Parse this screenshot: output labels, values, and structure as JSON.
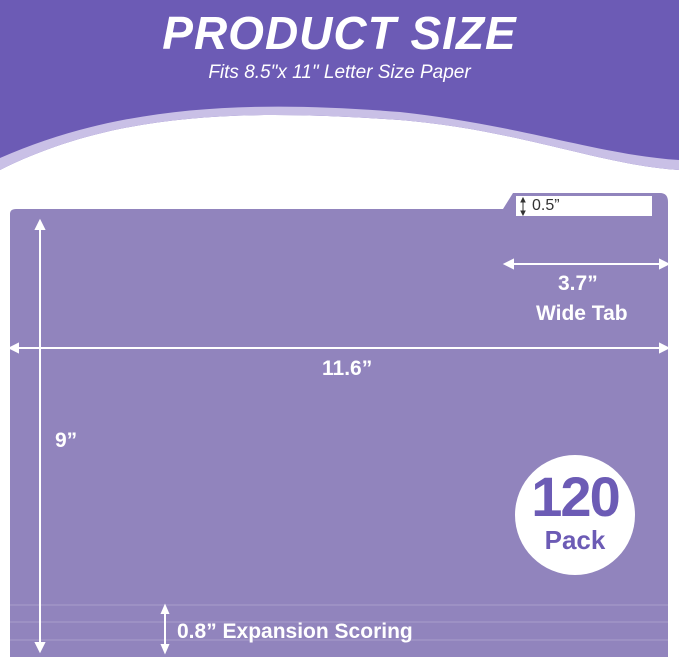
{
  "header": {
    "title": "PRODUCT SIZE",
    "subtitle": "Fits 8.5\"x 11\" Letter Size Paper"
  },
  "dimensions": {
    "tab_height": "0.5”",
    "tab_width": "3.7”",
    "tab_width_caption": "Wide Tab",
    "width": "11.6”",
    "height": "9”",
    "expansion": "0.8” Expansion Scoring"
  },
  "badge": {
    "count": "120",
    "label": "Pack"
  },
  "colors": {
    "banner": "#6c5bb5",
    "folder": "#9184bd",
    "accent_light": "#c9c0e6"
  }
}
